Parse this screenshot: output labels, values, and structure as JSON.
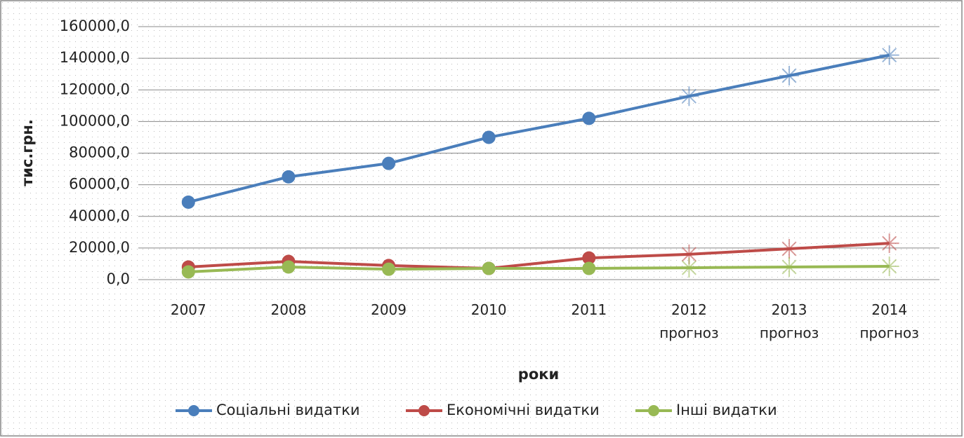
{
  "chart_data": {
    "type": "line",
    "categories": [
      "2007",
      "2008",
      "2009",
      "2010",
      "2011",
      "2012 прогноз",
      "2013 прогноз",
      "2014 прогноз"
    ],
    "xlabel": "роки",
    "ylabel": "тис.грн.",
    "ylim": [
      0,
      160000
    ],
    "yticks": [
      {
        "value": 0,
        "label": "0,0"
      },
      {
        "value": 20000,
        "label": "20000,0"
      },
      {
        "value": 40000,
        "label": "40000,0"
      },
      {
        "value": 60000,
        "label": "60000,0"
      },
      {
        "value": 80000,
        "label": "80000,0"
      },
      {
        "value": 100000,
        "label": "100000,0"
      },
      {
        "value": 120000,
        "label": "120000,0"
      },
      {
        "value": 140000,
        "label": "140000,0"
      },
      {
        "value": 160000,
        "label": "160000,0"
      }
    ],
    "grid": true,
    "legend": "bottom",
    "series": [
      {
        "name": "Соціальні видатки",
        "color": "#4a7ebb",
        "values": [
          49000,
          65000,
          73500,
          90000,
          102000,
          116000,
          129000,
          142000
        ]
      },
      {
        "name": "Економічні видатки",
        "color": "#be4b48",
        "values": [
          8000,
          11500,
          8900,
          7100,
          13700,
          16000,
          19500,
          23000
        ]
      },
      {
        "name": "Інші видатки",
        "color": "#98b954",
        "values": [
          4900,
          8000,
          6600,
          7100,
          7100,
          7500,
          8000,
          8400
        ]
      }
    ]
  }
}
